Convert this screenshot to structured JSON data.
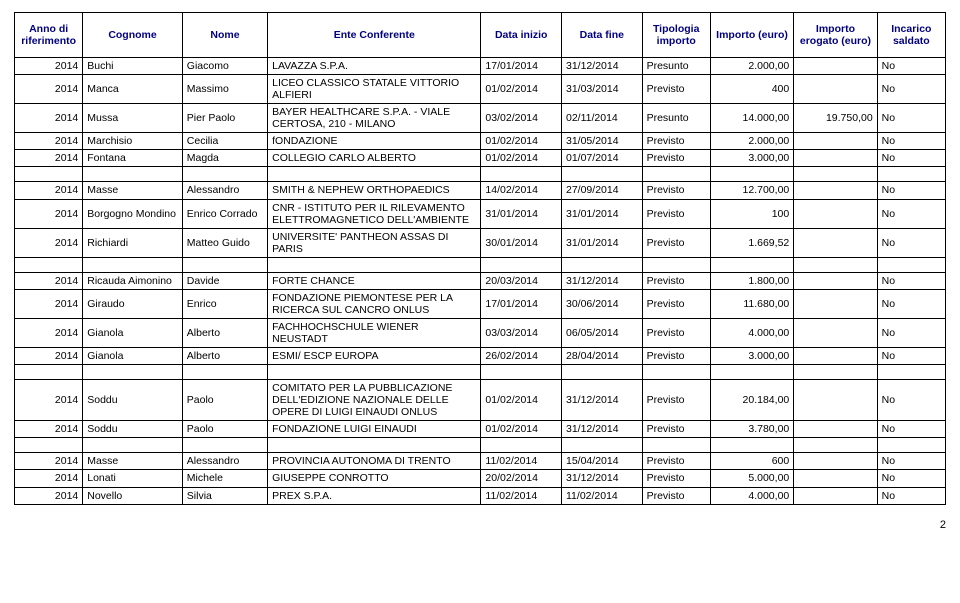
{
  "header": {
    "anno": "Anno di riferimento",
    "cognome": "Cognome",
    "nome": "Nome",
    "ente": "Ente Conferente",
    "inizio": "Data inizio",
    "fine": "Data fine",
    "tipologia": "Tipologia importo",
    "importo": "Importo (euro)",
    "erogato": "Importo erogato (euro)",
    "saldato": "Incarico saldato"
  },
  "colwidths_pct": [
    7.2,
    10.5,
    9,
    22.5,
    8.5,
    8.5,
    7.2,
    8.8,
    8.8,
    7.2
  ],
  "header_color": "#000080",
  "border_color": "#000000",
  "font_family": "Arial",
  "font_size_pt": 8,
  "groups": [
    {
      "rows": [
        {
          "anno": "2014",
          "cognome": "Buchi",
          "nome": "Giacomo",
          "ente": "LAVAZZA S.P.A.",
          "inizio": "17/01/2014",
          "fine": "31/12/2014",
          "tip": "Presunto",
          "imp": "2.000,00",
          "erog": "",
          "sal": "No"
        },
        {
          "anno": "2014",
          "cognome": "Manca",
          "nome": "Massimo",
          "ente": "LICEO CLASSICO STATALE VITTORIO ALFIERI",
          "inizio": "01/02/2014",
          "fine": "31/03/2014",
          "tip": "Previsto",
          "imp": "400",
          "erog": "",
          "sal": "No"
        },
        {
          "anno": "2014",
          "cognome": "Mussa",
          "nome": "Pier Paolo",
          "ente": "BAYER HEALTHCARE S.P.A. - VIALE CERTOSA, 210 - MILANO",
          "inizio": "03/02/2014",
          "fine": "02/11/2014",
          "tip": "Presunto",
          "imp": "14.000,00",
          "erog": "19.750,00",
          "sal": "No"
        },
        {
          "anno": "2014",
          "cognome": "Marchisio",
          "nome": "Cecilia",
          "ente": "fONDAZIONE",
          "inizio": "01/02/2014",
          "fine": "31/05/2014",
          "tip": "Previsto",
          "imp": "2.000,00",
          "erog": "",
          "sal": "No"
        },
        {
          "anno": "2014",
          "cognome": "Fontana",
          "nome": "Magda",
          "ente": "COLLEGIO CARLO ALBERTO",
          "inizio": "01/02/2014",
          "fine": "01/07/2014",
          "tip": "Previsto",
          "imp": "3.000,00",
          "erog": "",
          "sal": "No"
        }
      ]
    },
    {
      "rows": [
        {
          "anno": "2014",
          "cognome": "Masse",
          "nome": "Alessandro",
          "ente": "SMITH & NEPHEW ORTHOPAEDICS",
          "inizio": "14/02/2014",
          "fine": "27/09/2014",
          "tip": "Previsto",
          "imp": "12.700,00",
          "erog": "",
          "sal": "No"
        },
        {
          "anno": "2014",
          "cognome": "Borgogno Mondino",
          "nome": "Enrico Corrado",
          "ente": "CNR - ISTITUTO PER IL RILEVAMENTO ELETTROMAGNETICO DELL'AMBIENTE",
          "inizio": "31/01/2014",
          "fine": "31/01/2014",
          "tip": "Previsto",
          "imp": "100",
          "erog": "",
          "sal": "No"
        },
        {
          "anno": "2014",
          "cognome": "Richiardi",
          "nome": "Matteo Guido",
          "ente": "UNIVERSITE' PANTHEON ASSAS DI PARIS",
          "inizio": "30/01/2014",
          "fine": "31/01/2014",
          "tip": "Previsto",
          "imp": "1.669,52",
          "erog": "",
          "sal": "No"
        }
      ]
    },
    {
      "rows": [
        {
          "anno": "2014",
          "cognome": "Ricauda Aimonino",
          "nome": "Davide",
          "ente": "FORTE CHANCE",
          "inizio": "20/03/2014",
          "fine": "31/12/2014",
          "tip": "Previsto",
          "imp": "1.800,00",
          "erog": "",
          "sal": "No"
        },
        {
          "anno": "2014",
          "cognome": "Giraudo",
          "nome": "Enrico",
          "ente": "FONDAZIONE PIEMONTESE PER LA RICERCA SUL CANCRO ONLUS",
          "inizio": "17/01/2014",
          "fine": "30/06/2014",
          "tip": "Previsto",
          "imp": "11.680,00",
          "erog": "",
          "sal": "No"
        },
        {
          "anno": "2014",
          "cognome": "Gianola",
          "nome": "Alberto",
          "ente": "FACHHOCHSCHULE WIENER NEUSTADT",
          "inizio": "03/03/2014",
          "fine": "06/05/2014",
          "tip": "Previsto",
          "imp": "4.000,00",
          "erog": "",
          "sal": "No"
        },
        {
          "anno": "2014",
          "cognome": "Gianola",
          "nome": "Alberto",
          "ente": "ESMI/ ESCP EUROPA",
          "inizio": "26/02/2014",
          "fine": "28/04/2014",
          "tip": "Previsto",
          "imp": "3.000,00",
          "erog": "",
          "sal": "No"
        }
      ]
    },
    {
      "rows": [
        {
          "anno": "2014",
          "cognome": "Soddu",
          "nome": "Paolo",
          "ente": "COMITATO PER LA PUBBLICAZIONE DELL'EDIZIONE NAZIONALE DELLE OPERE DI LUIGI EINAUDI ONLUS",
          "inizio": "01/02/2014",
          "fine": "31/12/2014",
          "tip": "Previsto",
          "imp": "20.184,00",
          "erog": "",
          "sal": "No"
        },
        {
          "anno": "2014",
          "cognome": "Soddu",
          "nome": "Paolo",
          "ente": "FONDAZIONE LUIGI EINAUDI",
          "inizio": "01/02/2014",
          "fine": "31/12/2014",
          "tip": "Previsto",
          "imp": "3.780,00",
          "erog": "",
          "sal": "No"
        }
      ]
    },
    {
      "rows": [
        {
          "anno": "2014",
          "cognome": "Masse",
          "nome": "Alessandro",
          "ente": "PROVINCIA AUTONOMA DI TRENTO",
          "inizio": "11/02/2014",
          "fine": "15/04/2014",
          "tip": "Previsto",
          "imp": "600",
          "erog": "",
          "sal": "No"
        },
        {
          "anno": "2014",
          "cognome": "Lonati",
          "nome": "Michele",
          "ente": "GIUSEPPE CONROTTO",
          "inizio": "20/02/2014",
          "fine": "31/12/2014",
          "tip": "Previsto",
          "imp": "5.000,00",
          "erog": "",
          "sal": "No"
        },
        {
          "anno": "2014",
          "cognome": "Novello",
          "nome": "Silvia",
          "ente": "PREX S.P.A.",
          "inizio": "11/02/2014",
          "fine": "11/02/2014",
          "tip": "Previsto",
          "imp": "4.000,00",
          "erog": "",
          "sal": "No"
        }
      ]
    }
  ],
  "page_number": "2"
}
